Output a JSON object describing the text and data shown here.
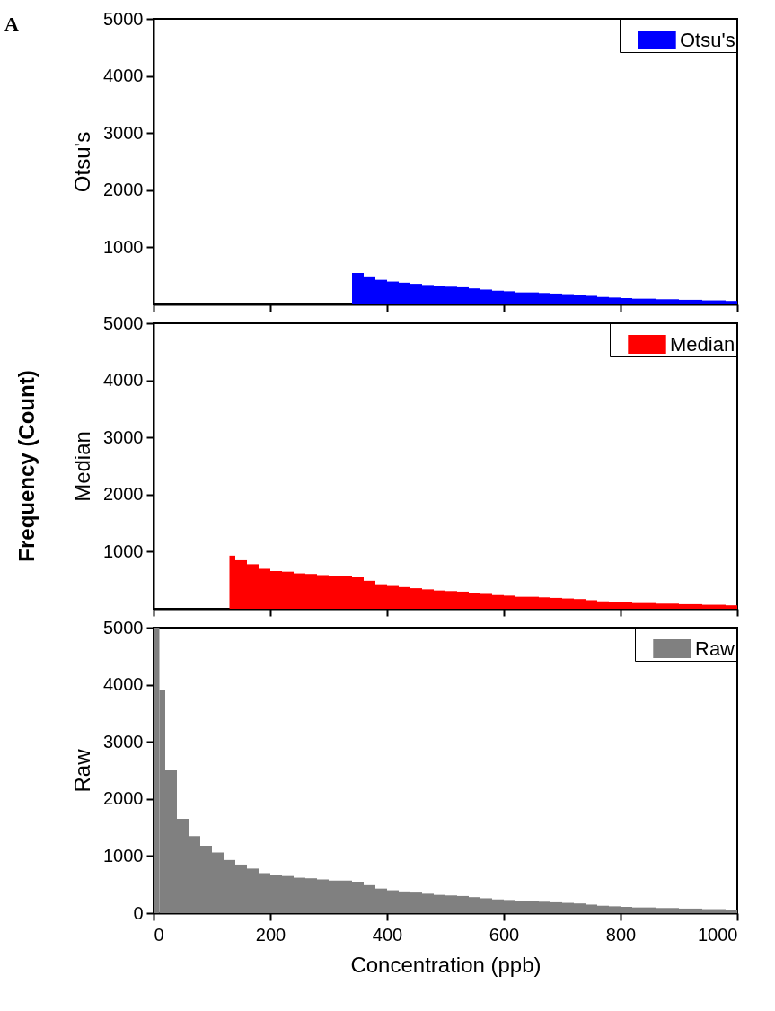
{
  "chart_data": [
    {
      "type": "histogram",
      "ylabel": "Otsu's",
      "annotations": [
        "A"
      ],
      "legend": "top right",
      "tick_labels": "y",
      "bins": [
        340,
        360,
        380,
        400,
        420,
        440,
        460,
        480,
        500,
        520,
        540,
        560,
        580,
        600,
        620,
        640,
        660,
        680,
        700,
        720,
        740,
        760,
        780,
        800,
        820,
        840,
        860,
        880,
        900,
        920,
        940,
        960,
        980,
        1000
      ],
      "series": [
        {
          "name": "Otsu's",
          "color": "#0000ff",
          "values": [
            550,
            490,
            430,
            400,
            380,
            360,
            340,
            320,
            310,
            300,
            280,
            260,
            240,
            230,
            210,
            210,
            200,
            190,
            180,
            170,
            150,
            130,
            120,
            110,
            100,
            100,
            90,
            90,
            80,
            80,
            70,
            70,
            60
          ]
        }
      ],
      "xlim": [
        0,
        1000
      ],
      "xticks": [
        0,
        200,
        400,
        600,
        800,
        1000
      ],
      "ylim": [
        0,
        5000
      ],
      "yticks": [
        1000,
        2000,
        3000,
        4000,
        5000
      ]
    },
    {
      "type": "histogram",
      "ylabel": "Median",
      "annotations": [
        "Frequency (Count)"
      ],
      "legend": "top right",
      "tick_labels": "y",
      "bins": [
        130,
        140,
        160,
        180,
        200,
        220,
        240,
        260,
        280,
        300,
        320,
        340,
        360,
        380,
        400,
        420,
        440,
        460,
        480,
        500,
        520,
        540,
        560,
        580,
        600,
        620,
        640,
        660,
        680,
        700,
        720,
        740,
        760,
        780,
        800,
        820,
        840,
        860,
        880,
        900,
        920,
        940,
        960,
        980,
        1000
      ],
      "series": [
        {
          "name": "Median",
          "color": "#ff0000",
          "values": [
            930,
            850,
            780,
            700,
            660,
            650,
            620,
            610,
            590,
            570,
            570,
            550,
            490,
            430,
            400,
            380,
            360,
            340,
            320,
            310,
            300,
            280,
            260,
            240,
            230,
            210,
            210,
            200,
            190,
            180,
            170,
            150,
            130,
            120,
            110,
            100,
            100,
            90,
            90,
            80,
            80,
            70,
            70,
            60
          ]
        }
      ],
      "xlim": [
        0,
        1000
      ],
      "xticks": [
        0,
        200,
        400,
        600,
        800,
        1000
      ],
      "ylim": [
        0,
        5000
      ],
      "yticks": [
        1000,
        2000,
        3000,
        4000,
        5000
      ]
    },
    {
      "type": "histogram",
      "ylabel": "Raw",
      "xlabel": "Concentration (ppb)",
      "legend": "top right",
      "bins": [
        0,
        10,
        20,
        40,
        60,
        80,
        100,
        120,
        140,
        160,
        180,
        200,
        220,
        240,
        260,
        280,
        300,
        320,
        340,
        360,
        380,
        400,
        420,
        440,
        460,
        480,
        500,
        520,
        540,
        560,
        580,
        600,
        620,
        640,
        660,
        680,
        700,
        720,
        740,
        760,
        780,
        800,
        820,
        840,
        860,
        880,
        900,
        920,
        940,
        960,
        980,
        1000
      ],
      "series": [
        {
          "name": "Raw",
          "color": "#808080",
          "values": [
            5000,
            3900,
            2500,
            1650,
            1350,
            1180,
            1060,
            930,
            850,
            780,
            700,
            660,
            650,
            620,
            610,
            590,
            570,
            570,
            550,
            490,
            430,
            400,
            380,
            360,
            340,
            320,
            310,
            300,
            280,
            260,
            240,
            230,
            210,
            210,
            200,
            190,
            180,
            170,
            150,
            130,
            120,
            110,
            100,
            100,
            90,
            90,
            80,
            80,
            70,
            70,
            60
          ]
        }
      ],
      "xlim": [
        0,
        1000
      ],
      "xticks": [
        0,
        200,
        400,
        600,
        800,
        1000
      ],
      "ylim": [
        0,
        5000
      ],
      "yticks": [
        0,
        1000,
        2000,
        3000,
        4000,
        5000
      ]
    }
  ]
}
